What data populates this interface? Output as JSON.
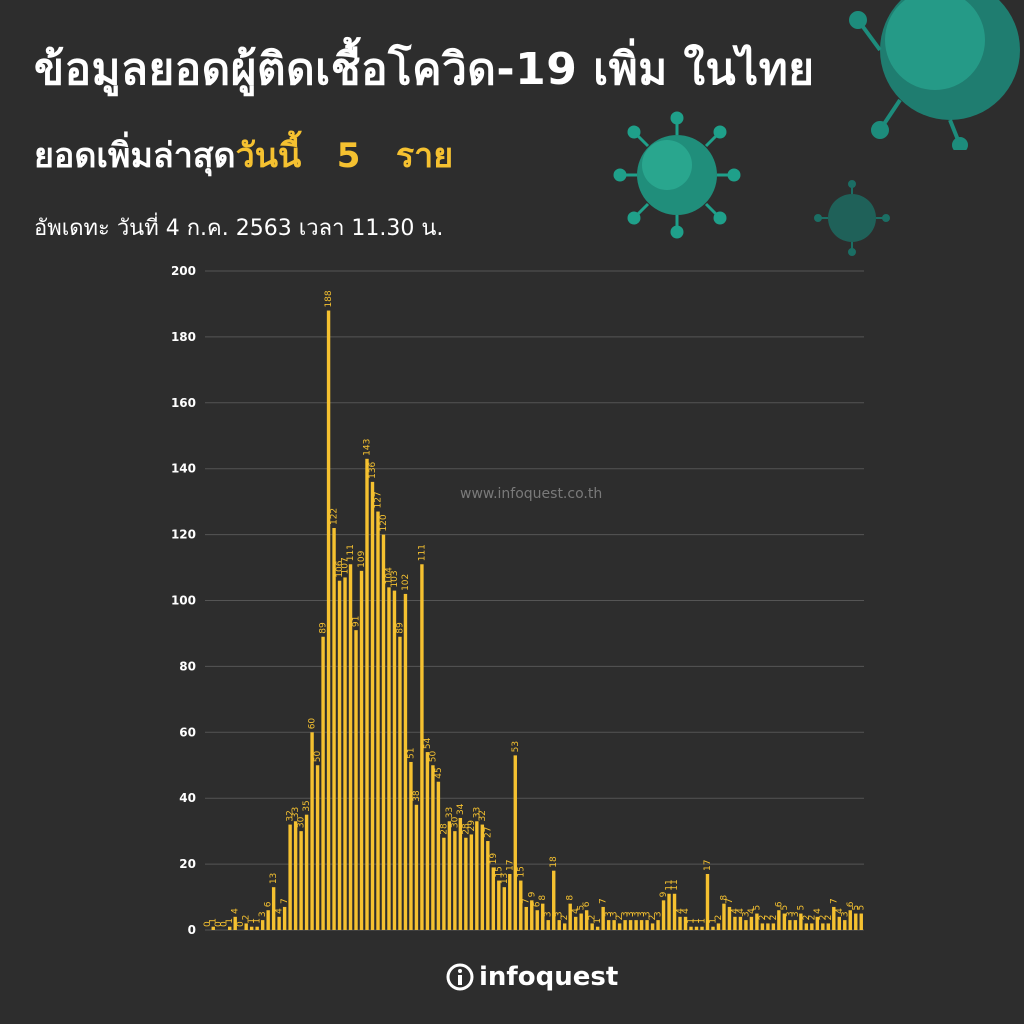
{
  "header": {
    "title": "ข้อมูลยอดผู้ติดเชื้อโควิด-19 เพิ่ม ในไทย",
    "subtitle_prefix": "ยอดเพิ่มล่าสุด",
    "subtitle_today": "วันนี้",
    "subtitle_count": "5",
    "subtitle_unit": "ราย",
    "update": "อัพเดทะ วันที่   4 ก.ค. 2563 เวลา 11.30 น."
  },
  "watermark": "www.infoquest.co.th",
  "logo": {
    "text": "infoquest",
    "icon": "info-circle-icon"
  },
  "colors": {
    "background": "#2d2d2d",
    "bar": "#f5c130",
    "accent": "#f5c130",
    "grid": "#555555",
    "virus": "#1fa08a"
  },
  "chart_data": {
    "type": "bar",
    "ylim": [
      0,
      200
    ],
    "yticks": [
      0,
      20,
      40,
      60,
      80,
      100,
      120,
      140,
      160,
      180,
      200
    ],
    "grid": true,
    "values": [
      0,
      1,
      0,
      0,
      1,
      4,
      0,
      2,
      1,
      1,
      3,
      6,
      13,
      4,
      7,
      32,
      33,
      30,
      35,
      60,
      50,
      89,
      188,
      122,
      106,
      107,
      111,
      91,
      109,
      143,
      136,
      127,
      120,
      104,
      103,
      89,
      102,
      51,
      38,
      111,
      54,
      50,
      45,
      28,
      33,
      30,
      34,
      28,
      29,
      33,
      32,
      27,
      19,
      15,
      13,
      17,
      53,
      15,
      7,
      9,
      6,
      8,
      3,
      18,
      3,
      2,
      8,
      4,
      5,
      6,
      2,
      1,
      7,
      3,
      3,
      2,
      3,
      3,
      3,
      3,
      3,
      2,
      3,
      9,
      11,
      11,
      4,
      4,
      1,
      1,
      1,
      17,
      1,
      2,
      8,
      7,
      4,
      4,
      3,
      4,
      5,
      2,
      2,
      2,
      6,
      5,
      3,
      3,
      5,
      2,
      2,
      4,
      2,
      2,
      7,
      4,
      3,
      6,
      5,
      5
    ]
  }
}
